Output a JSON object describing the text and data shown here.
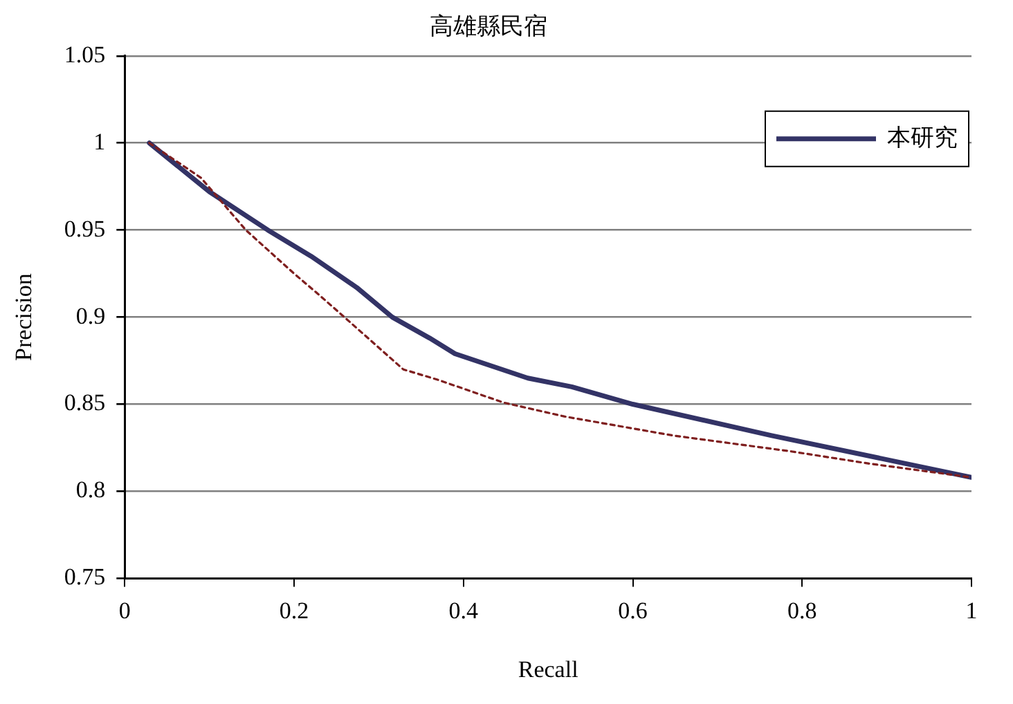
{
  "chart_data": {
    "type": "line",
    "title": "高雄縣民宿",
    "xlabel": "Recall",
    "ylabel": "Precision",
    "xlim": [
      0,
      1
    ],
    "xticks": [
      0,
      0.2,
      0.4,
      0.6,
      0.8,
      1
    ],
    "ylim": [
      0.75,
      1.05
    ],
    "yticks": [
      0.75,
      0.8,
      0.85,
      0.9,
      0.95,
      1,
      1.05
    ],
    "grid": "y",
    "legend": "top right",
    "marker": "none",
    "series": [
      {
        "name": "本研究",
        "color": "#333366",
        "line_style": "solid",
        "x": [
          0.029,
          0.1,
          0.169,
          0.22,
          0.274,
          0.316,
          0.36,
          0.39,
          0.476,
          0.528,
          0.6,
          0.764,
          1
        ],
        "values": [
          1,
          0.972,
          0.95,
          0.935,
          0.917,
          0.9,
          0.888,
          0.879,
          0.865,
          0.86,
          0.85,
          0.832,
          0.808
        ]
      },
      {
        "color": "#7f1f1f",
        "line_style": "dashed",
        "x": [
          0.029,
          0.09,
          0.143,
          0.2,
          0.229,
          0.264,
          0.329,
          0.37,
          0.447,
          0.519,
          0.648,
          0.786,
          0.878,
          1
        ],
        "values": [
          1,
          0.98,
          0.95,
          0.925,
          0.913,
          0.898,
          0.87,
          0.864,
          0.851,
          0.843,
          0.832,
          0.823,
          0.816,
          0.808
        ]
      }
    ]
  }
}
